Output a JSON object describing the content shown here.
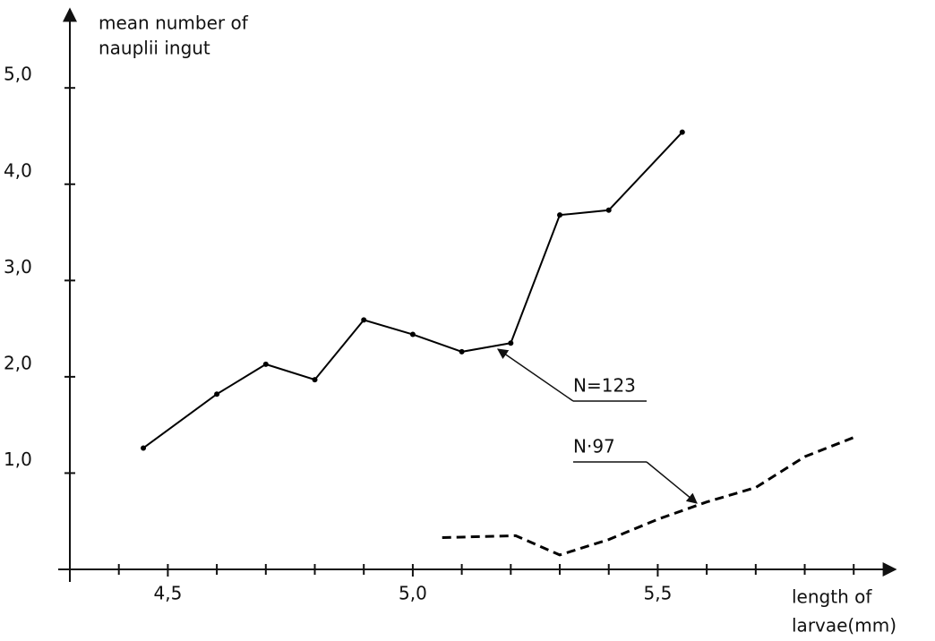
{
  "chart_data": {
    "type": "line",
    "y_label": [
      "mean number of",
      "nauplii ingut"
    ],
    "x_label": [
      "length of",
      "larvae(mm)"
    ],
    "xlim": [
      4.3,
      5.98
    ],
    "ylim": [
      0,
      5.82
    ],
    "xticks": [
      {
        "value": 4.5,
        "label": "4,5"
      },
      {
        "value": 5.0,
        "label": "5,0"
      },
      {
        "value": 5.5,
        "label": "5,5"
      }
    ],
    "xminor_ticks": [
      4.4,
      4.6,
      4.7,
      4.8,
      4.9,
      5.1,
      5.2,
      5.3,
      5.4,
      5.6,
      5.7,
      5.8,
      5.9
    ],
    "yticks": [
      {
        "value": 1,
        "label": "1,0"
      },
      {
        "value": 2,
        "label": "2,0"
      },
      {
        "value": 3,
        "label": "3,0"
      },
      {
        "value": 4,
        "label": "4,0"
      },
      {
        "value": 5,
        "label": "5,0"
      }
    ],
    "series": [
      {
        "name": "N=123",
        "color": "#000000",
        "line_style": "solid",
        "markers": true,
        "x": [
          4.45,
          4.6,
          4.7,
          4.8,
          4.9,
          5.0,
          5.1,
          5.2,
          5.3,
          5.4,
          5.55
        ],
        "values": [
          1.26,
          1.82,
          2.13,
          1.97,
          2.59,
          2.44,
          2.26,
          2.35,
          3.68,
          3.73,
          4.54
        ]
      },
      {
        "name": "N·97",
        "color": "#000000",
        "line_style": "dashed",
        "markers": false,
        "x": [
          5.06,
          5.21,
          5.3,
          5.4,
          5.5,
          5.6,
          5.7,
          5.8,
          5.9
        ],
        "values": [
          0.33,
          0.35,
          0.15,
          0.31,
          0.52,
          0.7,
          0.85,
          1.17,
          1.37
        ]
      }
    ]
  }
}
